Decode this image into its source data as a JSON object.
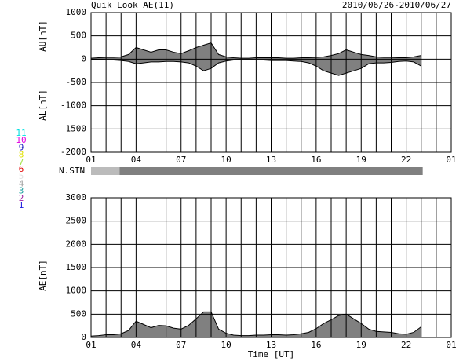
{
  "chart_data": [
    {
      "type": "area",
      "title": "Quik Look AE(11)",
      "subtitle": "2010/06/26-2010/06/27",
      "ylabels": [
        "AU[nT]",
        "AL[nT]"
      ],
      "x": [
        1,
        1.5,
        2,
        2.5,
        3,
        3.5,
        4,
        4.5,
        5,
        5.5,
        6,
        6.5,
        7,
        7.5,
        8,
        8.5,
        9,
        9.5,
        10,
        10.5,
        11,
        11.5,
        12,
        12.5,
        13,
        13.5,
        14,
        14.5,
        15,
        15.5,
        16,
        16.5,
        17,
        17.5,
        18,
        18.5,
        19,
        19.5,
        20,
        20.5,
        21,
        21.5,
        22,
        22.5,
        23
      ],
      "series": [
        {
          "name": "AU",
          "color": "#808080",
          "values": [
            20,
            30,
            40,
            40,
            50,
            100,
            250,
            200,
            150,
            200,
            200,
            150,
            120,
            180,
            250,
            300,
            350,
            100,
            50,
            30,
            20,
            20,
            30,
            30,
            30,
            30,
            20,
            20,
            30,
            30,
            40,
            50,
            80,
            120,
            200,
            150,
            100,
            80,
            50,
            40,
            40,
            30,
            30,
            50,
            80
          ]
        },
        {
          "name": "AL",
          "color": "#808080",
          "values": [
            -10,
            -10,
            -20,
            -20,
            -30,
            -50,
            -100,
            -80,
            -60,
            -60,
            -50,
            -50,
            -60,
            -80,
            -150,
            -250,
            -200,
            -80,
            -40,
            -20,
            -20,
            -20,
            -20,
            -20,
            -30,
            -30,
            -30,
            -40,
            -50,
            -80,
            -150,
            -250,
            -300,
            -350,
            -300,
            -250,
            -200,
            -100,
            -80,
            -80,
            -70,
            -50,
            -40,
            -60,
            -150
          ]
        }
      ],
      "xlim": [
        1,
        25
      ],
      "xticks": [
        {
          "value": 1,
          "label": "01"
        },
        {
          "value": 2,
          "label": null
        },
        {
          "value": 3,
          "label": null
        },
        {
          "value": 4,
          "label": "04"
        },
        {
          "value": 5,
          "label": null
        },
        {
          "value": 6,
          "label": null
        },
        {
          "value": 7,
          "label": "07"
        },
        {
          "value": 8,
          "label": null
        },
        {
          "value": 9,
          "label": null
        },
        {
          "value": 10,
          "label": "10"
        },
        {
          "value": 11,
          "label": null
        },
        {
          "value": 12,
          "label": null
        },
        {
          "value": 13,
          "label": "13"
        },
        {
          "value": 14,
          "label": null
        },
        {
          "value": 15,
          "label": null
        },
        {
          "value": 16,
          "label": "16"
        },
        {
          "value": 17,
          "label": null
        },
        {
          "value": 18,
          "label": null
        },
        {
          "value": 19,
          "label": "19"
        },
        {
          "value": 20,
          "label": null
        },
        {
          "value": 21,
          "label": null
        },
        {
          "value": 22,
          "label": "22"
        },
        {
          "value": 23,
          "label": null
        },
        {
          "value": 24,
          "label": null
        },
        {
          "value": 25,
          "label": "01"
        }
      ],
      "ylim": [
        -2000,
        1000
      ],
      "yticks": [
        -2000,
        -1500,
        -1000,
        -500,
        0,
        500,
        1000
      ],
      "grid": true,
      "n_stn": {
        "label": "N.STN",
        "segments": [
          {
            "start": 1,
            "end": 2.9,
            "color": "#bbbbbb"
          },
          {
            "start": 2.9,
            "end": 23.1,
            "color": "#808080"
          }
        ]
      },
      "stations": [
        {
          "label": "11",
          "color": "#00e0e0"
        },
        {
          "label": "10",
          "color": "#e000e0"
        },
        {
          "label": "9",
          "color": "#2020c0"
        },
        {
          "label": "8",
          "color": "#e0e000"
        },
        {
          "label": "7",
          "color": "#a0e040"
        },
        {
          "label": "6",
          "color": "#e00000"
        },
        {
          "label": "5",
          "color": "#e0e0e0"
        },
        {
          "label": "4",
          "color": "#a0a0a0"
        },
        {
          "label": "3",
          "color": "#20a0a0"
        },
        {
          "label": "2",
          "color": "#a020a0"
        },
        {
          "label": "1",
          "color": "#2020e0"
        }
      ]
    },
    {
      "type": "area",
      "ylabels": [
        "AE[nT]"
      ],
      "xlabel": "Time [UT]",
      "x": [
        1,
        1.5,
        2,
        2.5,
        3,
        3.5,
        4,
        4.5,
        5,
        5.5,
        6,
        6.5,
        7,
        7.5,
        8,
        8.5,
        9,
        9.5,
        10,
        10.5,
        11,
        11.5,
        12,
        12.5,
        13,
        13.5,
        14,
        14.5,
        15,
        15.5,
        16,
        16.5,
        17,
        17.5,
        18,
        18.5,
        19,
        19.5,
        20,
        20.5,
        21,
        21.5,
        22,
        22.5,
        23
      ],
      "series": [
        {
          "name": "AE",
          "color": "#808080",
          "values": [
            30,
            40,
            60,
            60,
            80,
            150,
            350,
            280,
            210,
            260,
            250,
            200,
            180,
            260,
            400,
            550,
            550,
            180,
            90,
            50,
            40,
            40,
            50,
            50,
            60,
            60,
            50,
            60,
            80,
            110,
            190,
            300,
            380,
            470,
            500,
            400,
            300,
            180,
            130,
            120,
            110,
            80,
            70,
            110,
            230
          ]
        }
      ],
      "xlim": [
        1,
        25
      ],
      "xticks": [
        {
          "value": 1,
          "label": "01"
        },
        {
          "value": 2,
          "label": null
        },
        {
          "value": 3,
          "label": null
        },
        {
          "value": 4,
          "label": "04"
        },
        {
          "value": 5,
          "label": null
        },
        {
          "value": 6,
          "label": null
        },
        {
          "value": 7,
          "label": "07"
        },
        {
          "value": 8,
          "label": null
        },
        {
          "value": 9,
          "label": null
        },
        {
          "value": 10,
          "label": "10"
        },
        {
          "value": 11,
          "label": null
        },
        {
          "value": 12,
          "label": null
        },
        {
          "value": 13,
          "label": "13"
        },
        {
          "value": 14,
          "label": null
        },
        {
          "value": 15,
          "label": null
        },
        {
          "value": 16,
          "label": "16"
        },
        {
          "value": 17,
          "label": null
        },
        {
          "value": 18,
          "label": null
        },
        {
          "value": 19,
          "label": "19"
        },
        {
          "value": 20,
          "label": null
        },
        {
          "value": 21,
          "label": null
        },
        {
          "value": 22,
          "label": "22"
        },
        {
          "value": 23,
          "label": null
        },
        {
          "value": 24,
          "label": null
        },
        {
          "value": 25,
          "label": "01"
        }
      ],
      "ylim": [
        0,
        3000
      ],
      "yticks": [
        0,
        500,
        1000,
        1500,
        2000,
        2500,
        3000
      ],
      "grid": true
    }
  ]
}
